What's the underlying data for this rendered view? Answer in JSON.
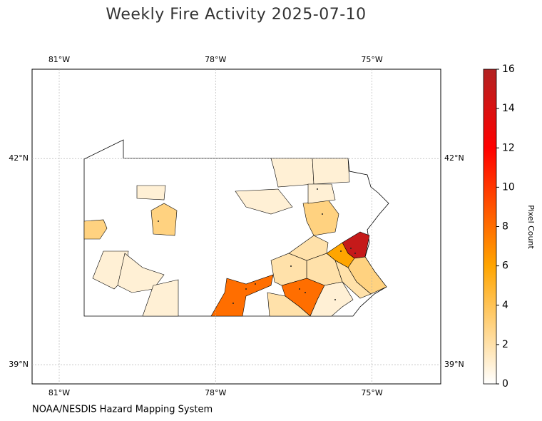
{
  "chart_data": {
    "type": "choropleth",
    "title": "Weekly Fire Activity 2025-07-10",
    "source": "NOAA/NESDIS Hazard Mapping System",
    "xlim": [
      -81.52,
      -73.68
    ],
    "ylim": [
      38.72,
      43.3
    ],
    "xticks": [
      {
        "value": -81,
        "label": "81°W"
      },
      {
        "value": -78,
        "label": "78°W"
      },
      {
        "value": -75,
        "label": "75°W"
      }
    ],
    "yticks": [
      {
        "value": 39,
        "label": "39°N"
      },
      {
        "value": 42,
        "label": "42°N"
      }
    ],
    "grid": true,
    "values": [
      15,
      6,
      3,
      2,
      2,
      8,
      1,
      8,
      2,
      2,
      2,
      3,
      1,
      1,
      1,
      1,
      3,
      1,
      3,
      1,
      1,
      1
    ],
    "colorbar": {
      "label": "Pixel Count",
      "lim": [
        0,
        16
      ],
      "ticks": [
        0,
        2,
        4,
        6,
        8,
        10,
        12,
        14,
        16
      ],
      "colormap": [
        {
          "value": 0,
          "color": "#ffffff"
        },
        {
          "value": 6,
          "color": "#ffa500"
        },
        {
          "value": 12,
          "color": "#ff0000"
        },
        {
          "value": 16,
          "color": "#b22222"
        }
      ]
    }
  }
}
